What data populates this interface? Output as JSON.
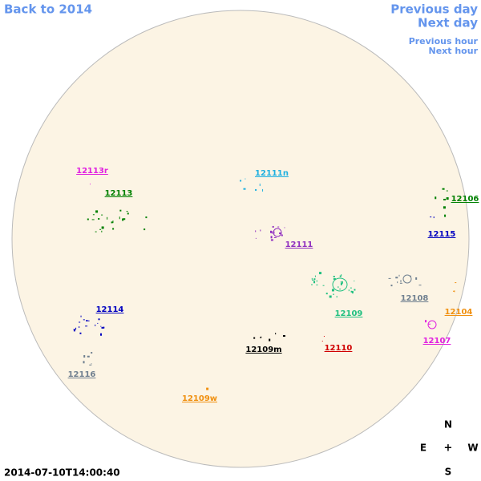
{
  "navigation": {
    "back": "Back to 2014",
    "previous_day": "Previous day",
    "next_day": "Next day",
    "previous_hour": "Previous hour",
    "next_hour": "Next hour"
  },
  "timestamp": "2014-07-10T14:00:40",
  "compass": {
    "north": "N",
    "east": "E",
    "center": "+",
    "west": "W",
    "south": "S"
  },
  "regions": [
    {
      "label": "12113r",
      "color": "#e020e0"
    },
    {
      "label": "12113",
      "color": "#008000"
    },
    {
      "label": "12111n",
      "color": "#20b0e0"
    },
    {
      "label": "12111",
      "color": "#9030c0"
    },
    {
      "label": "12106",
      "color": "#008000"
    },
    {
      "label": "12115",
      "color": "#0000c0"
    },
    {
      "label": "12114",
      "color": "#0000c0"
    },
    {
      "label": "12109",
      "color": "#20c080"
    },
    {
      "label": "12108",
      "color": "#708090"
    },
    {
      "label": "12104",
      "color": "#f09010"
    },
    {
      "label": "12107",
      "color": "#e020e0"
    },
    {
      "label": "12110",
      "color": "#d00000"
    },
    {
      "label": "12109m",
      "color": "#000000"
    },
    {
      "label": "12116",
      "color": "#708090"
    },
    {
      "label": "12109w",
      "color": "#f09010"
    }
  ]
}
